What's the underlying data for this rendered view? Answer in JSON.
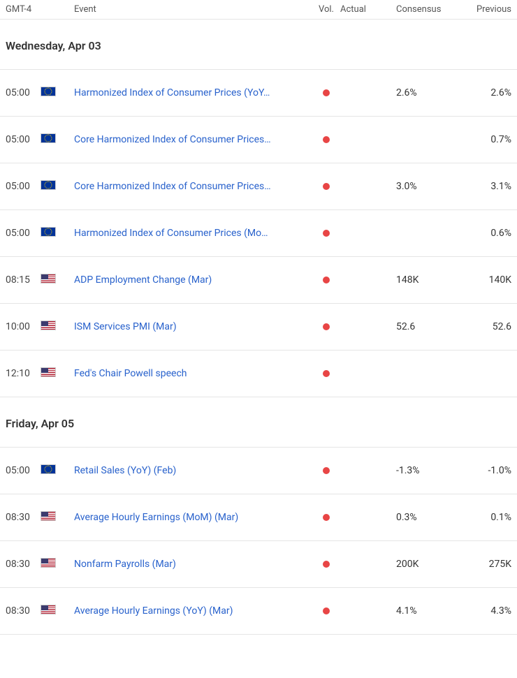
{
  "headers": {
    "time": "GMT-4",
    "event": "Event",
    "vol": "Vol.",
    "actual": "Actual",
    "consensus": "Consensus",
    "previous": "Previous"
  },
  "colors": {
    "vol_high": "#e84545",
    "link": "#2962cc",
    "border": "#e5e5e5"
  },
  "groups": [
    {
      "date": "Wednesday, Apr 03",
      "events": [
        {
          "time": "05:00",
          "flag": "eu",
          "name": "Harmonized Index of Consumer Prices (YoY…",
          "vol": "high",
          "actual": "",
          "consensus": "2.6%",
          "previous": "2.6%"
        },
        {
          "time": "05:00",
          "flag": "eu",
          "name": "Core Harmonized Index of Consumer Prices…",
          "vol": "high",
          "actual": "",
          "consensus": "",
          "previous": "0.7%"
        },
        {
          "time": "05:00",
          "flag": "eu",
          "name": "Core Harmonized Index of Consumer Prices…",
          "vol": "high",
          "actual": "",
          "consensus": "3.0%",
          "previous": "3.1%"
        },
        {
          "time": "05:00",
          "flag": "eu",
          "name": "Harmonized Index of Consumer Prices (Mo…",
          "vol": "high",
          "actual": "",
          "consensus": "",
          "previous": "0.6%"
        },
        {
          "time": "08:15",
          "flag": "us",
          "name": "ADP Employment Change (Mar)",
          "vol": "high",
          "actual": "",
          "consensus": "148K",
          "previous": "140K"
        },
        {
          "time": "10:00",
          "flag": "us",
          "name": "ISM Services PMI (Mar)",
          "vol": "high",
          "actual": "",
          "consensus": "52.6",
          "previous": "52.6"
        },
        {
          "time": "12:10",
          "flag": "us",
          "name": "Fed's Chair Powell speech",
          "vol": "high",
          "actual": "",
          "consensus": "",
          "previous": ""
        }
      ]
    },
    {
      "date": "Friday, Apr 05",
      "events": [
        {
          "time": "05:00",
          "flag": "eu",
          "name": "Retail Sales (YoY) (Feb)",
          "vol": "high",
          "actual": "",
          "consensus": "-1.3%",
          "previous": "-1.0%"
        },
        {
          "time": "08:30",
          "flag": "us",
          "name": "Average Hourly Earnings (MoM) (Mar)",
          "vol": "high",
          "actual": "",
          "consensus": "0.3%",
          "previous": "0.1%"
        },
        {
          "time": "08:30",
          "flag": "us",
          "name": "Nonfarm Payrolls (Mar)",
          "vol": "high",
          "actual": "",
          "consensus": "200K",
          "previous": "275K"
        },
        {
          "time": "08:30",
          "flag": "us",
          "name": "Average Hourly Earnings (YoY) (Mar)",
          "vol": "high",
          "actual": "",
          "consensus": "4.1%",
          "previous": "4.3%"
        }
      ]
    }
  ]
}
